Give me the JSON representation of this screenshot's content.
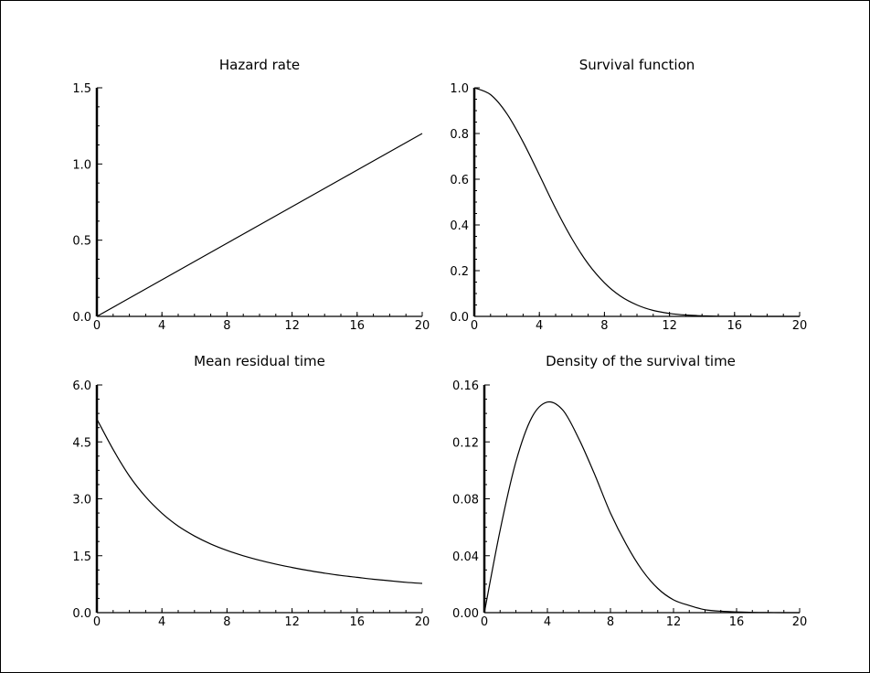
{
  "chart_data": [
    {
      "type": "line",
      "title": "Hazard rate",
      "xlim": [
        0,
        20
      ],
      "ylim": [
        0,
        1.5
      ],
      "xticks": [
        "0",
        "4",
        "8",
        "12",
        "16",
        "20"
      ],
      "yticks": [
        "0.0",
        "0.5",
        "1.0",
        "1.5"
      ],
      "x": [
        0,
        2,
        4,
        6,
        8,
        10,
        12,
        14,
        16,
        18,
        20
      ],
      "y": [
        0.0,
        0.12,
        0.24,
        0.36,
        0.48,
        0.6,
        0.72,
        0.84,
        0.96,
        1.08,
        1.2
      ]
    },
    {
      "type": "line",
      "title": "Survival function",
      "xlim": [
        0,
        20
      ],
      "ylim": [
        0,
        1.0
      ],
      "xticks": [
        "0",
        "4",
        "8",
        "12",
        "16",
        "20"
      ],
      "yticks": [
        "0.0",
        "0.2",
        "0.4",
        "0.6",
        "0.8",
        "1.0"
      ],
      "x": [
        0,
        1,
        2,
        3,
        4,
        5,
        6,
        7,
        8,
        9,
        10,
        11,
        12,
        13,
        14,
        15,
        16,
        17,
        18,
        19,
        20
      ],
      "y": [
        1.0,
        0.97,
        0.887,
        0.763,
        0.619,
        0.472,
        0.34,
        0.23,
        0.147,
        0.088,
        0.05,
        0.026,
        0.013,
        0.006,
        0.003,
        0.001,
        0.0005,
        0.0002,
        0.0001,
        0.0,
        0.0
      ]
    },
    {
      "type": "line",
      "title": "Mean residual time",
      "xlim": [
        0,
        20
      ],
      "ylim": [
        0,
        6.0
      ],
      "xticks": [
        "0",
        "4",
        "8",
        "12",
        "16",
        "20"
      ],
      "yticks": [
        "0.0",
        "1.5",
        "3.0",
        "4.5",
        "6.0"
      ],
      "x": [
        0,
        1,
        2,
        3,
        4,
        5,
        6,
        7,
        8,
        9,
        10,
        11,
        12,
        13,
        14,
        15,
        16,
        17,
        18,
        19,
        20
      ],
      "y": [
        5.1,
        4.3,
        3.6,
        3.05,
        2.62,
        2.28,
        2.02,
        1.81,
        1.64,
        1.5,
        1.38,
        1.28,
        1.19,
        1.11,
        1.04,
        0.98,
        0.93,
        0.88,
        0.84,
        0.8,
        0.77
      ]
    },
    {
      "type": "line",
      "title": "Density of the survival time",
      "xlim": [
        0,
        20
      ],
      "ylim": [
        0,
        0.16
      ],
      "xticks": [
        "0",
        "4",
        "8",
        "12",
        "16",
        "20"
      ],
      "yticks": [
        "0.00",
        "0.04",
        "0.08",
        "0.12",
        "0.16"
      ],
      "x": [
        0,
        1,
        2,
        3,
        4,
        5,
        6,
        7,
        8,
        9,
        10,
        11,
        12,
        13,
        14,
        15,
        16,
        17,
        18,
        19,
        20
      ],
      "y": [
        0.0,
        0.058,
        0.106,
        0.137,
        0.148,
        0.142,
        0.122,
        0.097,
        0.07,
        0.048,
        0.03,
        0.017,
        0.009,
        0.005,
        0.002,
        0.001,
        0.0005,
        0.0002,
        0.0001,
        0.0,
        0.0
      ]
    }
  ]
}
